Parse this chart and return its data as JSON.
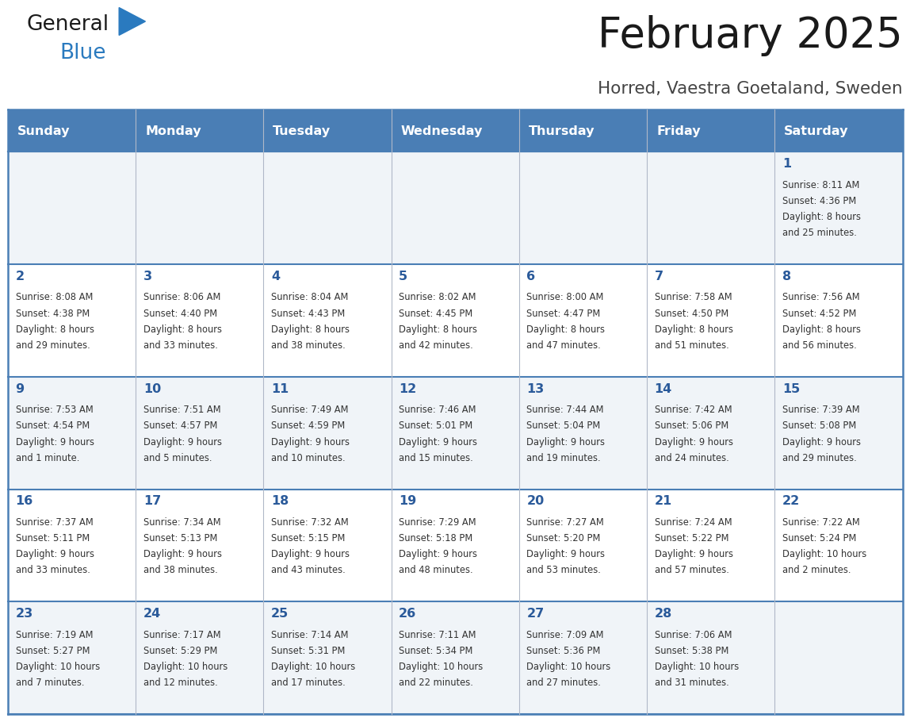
{
  "title": "February 2025",
  "subtitle": "Horred, Vaestra Goetaland, Sweden",
  "header_bg": "#4a7eb5",
  "header_text": "#ffffff",
  "day_headers": [
    "Sunday",
    "Monday",
    "Tuesday",
    "Wednesday",
    "Thursday",
    "Friday",
    "Saturday"
  ],
  "row_bg_light": "#f0f4f8",
  "row_bg_white": "#ffffff",
  "border_color": "#4a7eb5",
  "inner_border_color": "#b0b8c8",
  "date_color": "#2a5a9a",
  "info_color": "#333333",
  "background": "#ffffff",
  "days": [
    {
      "date": 1,
      "col": 6,
      "row": 0,
      "sunrise": "8:11 AM",
      "sunset": "4:36 PM",
      "daylight": "8 hours\nand 25 minutes."
    },
    {
      "date": 2,
      "col": 0,
      "row": 1,
      "sunrise": "8:08 AM",
      "sunset": "4:38 PM",
      "daylight": "8 hours\nand 29 minutes."
    },
    {
      "date": 3,
      "col": 1,
      "row": 1,
      "sunrise": "8:06 AM",
      "sunset": "4:40 PM",
      "daylight": "8 hours\nand 33 minutes."
    },
    {
      "date": 4,
      "col": 2,
      "row": 1,
      "sunrise": "8:04 AM",
      "sunset": "4:43 PM",
      "daylight": "8 hours\nand 38 minutes."
    },
    {
      "date": 5,
      "col": 3,
      "row": 1,
      "sunrise": "8:02 AM",
      "sunset": "4:45 PM",
      "daylight": "8 hours\nand 42 minutes."
    },
    {
      "date": 6,
      "col": 4,
      "row": 1,
      "sunrise": "8:00 AM",
      "sunset": "4:47 PM",
      "daylight": "8 hours\nand 47 minutes."
    },
    {
      "date": 7,
      "col": 5,
      "row": 1,
      "sunrise": "7:58 AM",
      "sunset": "4:50 PM",
      "daylight": "8 hours\nand 51 minutes."
    },
    {
      "date": 8,
      "col": 6,
      "row": 1,
      "sunrise": "7:56 AM",
      "sunset": "4:52 PM",
      "daylight": "8 hours\nand 56 minutes."
    },
    {
      "date": 9,
      "col": 0,
      "row": 2,
      "sunrise": "7:53 AM",
      "sunset": "4:54 PM",
      "daylight": "9 hours\nand 1 minute."
    },
    {
      "date": 10,
      "col": 1,
      "row": 2,
      "sunrise": "7:51 AM",
      "sunset": "4:57 PM",
      "daylight": "9 hours\nand 5 minutes."
    },
    {
      "date": 11,
      "col": 2,
      "row": 2,
      "sunrise": "7:49 AM",
      "sunset": "4:59 PM",
      "daylight": "9 hours\nand 10 minutes."
    },
    {
      "date": 12,
      "col": 3,
      "row": 2,
      "sunrise": "7:46 AM",
      "sunset": "5:01 PM",
      "daylight": "9 hours\nand 15 minutes."
    },
    {
      "date": 13,
      "col": 4,
      "row": 2,
      "sunrise": "7:44 AM",
      "sunset": "5:04 PM",
      "daylight": "9 hours\nand 19 minutes."
    },
    {
      "date": 14,
      "col": 5,
      "row": 2,
      "sunrise": "7:42 AM",
      "sunset": "5:06 PM",
      "daylight": "9 hours\nand 24 minutes."
    },
    {
      "date": 15,
      "col": 6,
      "row": 2,
      "sunrise": "7:39 AM",
      "sunset": "5:08 PM",
      "daylight": "9 hours\nand 29 minutes."
    },
    {
      "date": 16,
      "col": 0,
      "row": 3,
      "sunrise": "7:37 AM",
      "sunset": "5:11 PM",
      "daylight": "9 hours\nand 33 minutes."
    },
    {
      "date": 17,
      "col": 1,
      "row": 3,
      "sunrise": "7:34 AM",
      "sunset": "5:13 PM",
      "daylight": "9 hours\nand 38 minutes."
    },
    {
      "date": 18,
      "col": 2,
      "row": 3,
      "sunrise": "7:32 AM",
      "sunset": "5:15 PM",
      "daylight": "9 hours\nand 43 minutes."
    },
    {
      "date": 19,
      "col": 3,
      "row": 3,
      "sunrise": "7:29 AM",
      "sunset": "5:18 PM",
      "daylight": "9 hours\nand 48 minutes."
    },
    {
      "date": 20,
      "col": 4,
      "row": 3,
      "sunrise": "7:27 AM",
      "sunset": "5:20 PM",
      "daylight": "9 hours\nand 53 minutes."
    },
    {
      "date": 21,
      "col": 5,
      "row": 3,
      "sunrise": "7:24 AM",
      "sunset": "5:22 PM",
      "daylight": "9 hours\nand 57 minutes."
    },
    {
      "date": 22,
      "col": 6,
      "row": 3,
      "sunrise": "7:22 AM",
      "sunset": "5:24 PM",
      "daylight": "10 hours\nand 2 minutes."
    },
    {
      "date": 23,
      "col": 0,
      "row": 4,
      "sunrise": "7:19 AM",
      "sunset": "5:27 PM",
      "daylight": "10 hours\nand 7 minutes."
    },
    {
      "date": 24,
      "col": 1,
      "row": 4,
      "sunrise": "7:17 AM",
      "sunset": "5:29 PM",
      "daylight": "10 hours\nand 12 minutes."
    },
    {
      "date": 25,
      "col": 2,
      "row": 4,
      "sunrise": "7:14 AM",
      "sunset": "5:31 PM",
      "daylight": "10 hours\nand 17 minutes."
    },
    {
      "date": 26,
      "col": 3,
      "row": 4,
      "sunrise": "7:11 AM",
      "sunset": "5:34 PM",
      "daylight": "10 hours\nand 22 minutes."
    },
    {
      "date": 27,
      "col": 4,
      "row": 4,
      "sunrise": "7:09 AM",
      "sunset": "5:36 PM",
      "daylight": "10 hours\nand 27 minutes."
    },
    {
      "date": 28,
      "col": 5,
      "row": 4,
      "sunrise": "7:06 AM",
      "sunset": "5:38 PM",
      "daylight": "10 hours\nand 31 minutes."
    }
  ]
}
